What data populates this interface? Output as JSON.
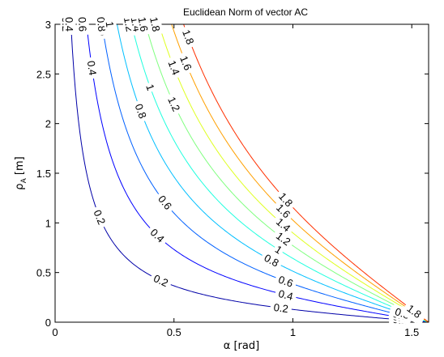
{
  "chart_data": {
    "type": "contour",
    "title": "Euclidean Norm of vector AC",
    "xlabel": "α [rad]",
    "ylabel_main": "ρ",
    "ylabel_sub": "A",
    "ylabel_unit": " [m]",
    "xlim": [
      0,
      1.5708
    ],
    "ylim": [
      0,
      3
    ],
    "x_ticks": [
      0,
      0.5,
      1,
      1.5
    ],
    "x_tick_labels": [
      "0",
      "0.5",
      "1",
      "1.5"
    ],
    "y_ticks": [
      0,
      0.5,
      1,
      1.5,
      2,
      2.5,
      3
    ],
    "y_tick_labels": [
      "0",
      "0.5",
      "1",
      "1.5",
      "2",
      "2.5",
      "3"
    ],
    "function": "rho_A * tan(alpha)",
    "levels": [
      0.2,
      0.4,
      0.6,
      0.8,
      1,
      1.2,
      1.4,
      1.6,
      1.8
    ],
    "level_labels": [
      "0.2",
      "0.4",
      "0.6",
      "0.8",
      "1",
      "1.2",
      "1.4",
      "1.6",
      "1.8"
    ],
    "level_colors": [
      "#0000a8",
      "#0000ff",
      "#0060ff",
      "#00bfff",
      "#20ffdf",
      "#80ff80",
      "#dfff20",
      "#ffa000",
      "#ff3000"
    ],
    "label_positions": [
      {
        "level": "0.2",
        "points": [
          [
            0.0459,
            2.5
          ],
          [
            0.187,
            0.79
          ],
          [
            0.445,
            0.26
          ],
          [
            0.95,
            0.124
          ],
          [
            1.45,
            0.09
          ]
        ]
      },
      {
        "level": "0.4",
        "points": [
          [
            0.0594,
            2.6
          ],
          [
            0.155,
            1.18
          ],
          [
            0.43,
            0.445
          ],
          [
            0.97,
            0.235
          ],
          [
            1.45,
            0.2
          ]
        ]
      },
      {
        "level": "0.6",
        "points": [
          [
            0.115,
            2.7
          ],
          [
            0.2,
            1.54
          ],
          [
            0.462,
            0.56
          ],
          [
            0.97,
            0.362
          ],
          [
            1.45,
            0.31
          ]
        ]
      },
      {
        "level": "0.8",
        "points": [
          [
            0.195,
            2.25
          ],
          [
            0.36,
            0.93
          ],
          [
            0.91,
            0.505
          ],
          [
            1.46,
            0.45
          ]
        ]
      },
      {
        "level": "1",
        "points": [
          [
            0.23,
            2.2
          ],
          [
            0.4,
            1.04
          ],
          [
            0.94,
            0.6
          ],
          [
            1.51,
            0.59
          ]
        ]
      },
      {
        "level": "1.2",
        "points": [
          [
            0.31,
            2.08
          ],
          [
            0.5,
            1.22
          ],
          [
            0.96,
            0.76
          ],
          [
            1.51,
            0.765
          ]
        ]
      },
      {
        "level": "1.4",
        "points": [
          [
            0.34,
            2.35
          ],
          [
            0.5,
            1.4
          ],
          [
            0.96,
            0.86
          ],
          [
            1.51,
            0.9
          ]
        ]
      },
      {
        "level": "1.6",
        "points": [
          [
            0.37,
            2.5
          ],
          [
            0.55,
            1.52
          ],
          [
            0.96,
            0.97
          ],
          [
            1.51,
            1.02
          ]
        ]
      },
      {
        "level": "1.8",
        "points": [
          [
            0.42,
            2.75
          ],
          [
            0.56,
            1.71
          ],
          [
            0.97,
            1.07
          ],
          [
            1.51,
            1.13
          ]
        ]
      }
    ]
  }
}
